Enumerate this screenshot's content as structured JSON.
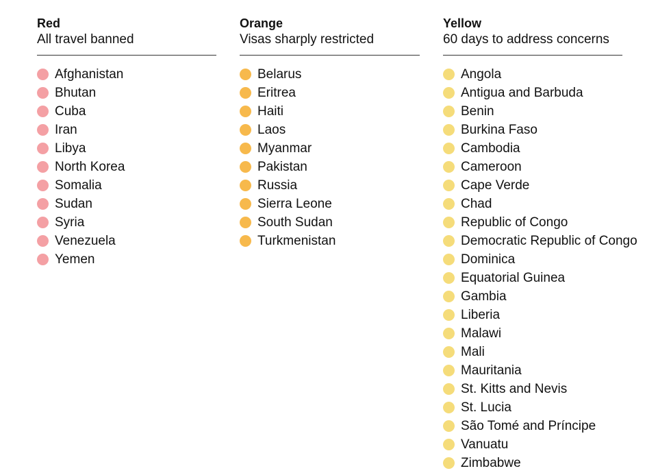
{
  "categories": [
    {
      "title": "Red",
      "subtitle": "All travel banned",
      "color": "#f4a0a4",
      "countries": [
        "Afghanistan",
        "Bhutan",
        "Cuba",
        "Iran",
        "Libya",
        "North Korea",
        "Somalia",
        "Sudan",
        "Syria",
        "Venezuela",
        "Yemen"
      ]
    },
    {
      "title": "Orange",
      "subtitle": "Visas sharply restricted",
      "color": "#f7b94c",
      "countries": [
        "Belarus",
        "Eritrea",
        "Haiti",
        "Laos",
        "Myanmar",
        "Pakistan",
        "Russia",
        "Sierra Leone",
        "South Sudan",
        "Turkmenistan"
      ]
    },
    {
      "title": "Yellow",
      "subtitle": "60 days to address concerns",
      "color": "#f5dc7a",
      "countries": [
        "Angola",
        "Antigua and Barbuda",
        "Benin",
        "Burkina Faso",
        "Cambodia",
        "Cameroon",
        "Cape Verde",
        "Chad",
        "Republic of Congo",
        "Democratic Republic of Congo",
        "Dominica",
        "Equatorial Guinea",
        "Gambia",
        "Liberia",
        "Malawi",
        "Mali",
        "Mauritania",
        "St. Kitts and Nevis",
        "St. Lucia",
        "São Tomé and Príncipe",
        "Vanuatu",
        "Zimbabwe"
      ]
    }
  ]
}
